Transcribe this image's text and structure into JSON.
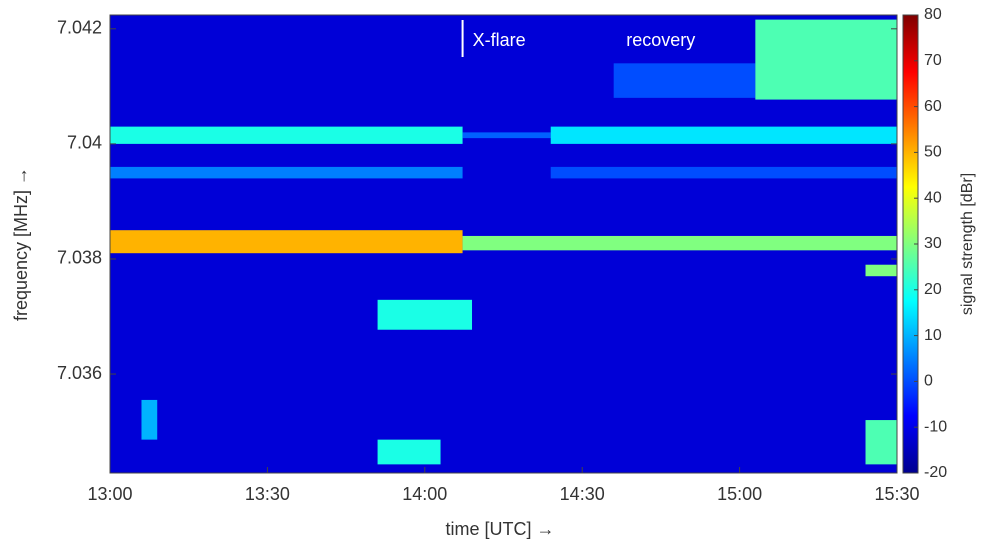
{
  "chart_data": {
    "type": "heatmap",
    "xlabel": "time  [UTC]  →",
    "ylabel": "frequency [MHz] →",
    "colorbar_label": "signal strength [dBr]",
    "xlim": [
      13,
      15.5
    ],
    "xticks": [
      {
        "value": 13,
        "label": "13:00"
      },
      {
        "value": 13.5,
        "label": "13:30"
      },
      {
        "value": 14,
        "label": "14:00"
      },
      {
        "value": 14.5,
        "label": "14:30"
      },
      {
        "value": 15,
        "label": "15:00"
      },
      {
        "value": 15.5,
        "label": "15:30"
      }
    ],
    "ylim": [
      7.03428,
      7.04224
    ],
    "yticks": [
      7.036,
      7.038,
      7.04,
      7.042
    ],
    "zlim": [
      -20,
      80
    ],
    "zticks": [
      -20,
      -10,
      0,
      10,
      20,
      30,
      40,
      50,
      60,
      70,
      80
    ],
    "colormap": [
      "#00008f",
      "#0000ff",
      "#0080ff",
      "#00ffff",
      "#80ff80",
      "#ffff00",
      "#ff8000",
      "#ff0000",
      "#800000"
    ],
    "background": -12,
    "cells": [
      {
        "x": [
          13,
          14.12
        ],
        "y": [
          7.0381,
          7.0385
        ],
        "value": 50
      },
      {
        "x": [
          14.12,
          15.5
        ],
        "y": [
          7.03815,
          7.0384
        ],
        "value": 30
      },
      {
        "x": [
          13,
          14.12
        ],
        "y": [
          7.04,
          7.0403
        ],
        "value": 20
      },
      {
        "x": [
          14.12,
          14.4
        ],
        "y": [
          7.0401,
          7.0402
        ],
        "value": 2
      },
      {
        "x": [
          14.4,
          15.5
        ],
        "y": [
          7.04,
          7.0403
        ],
        "value": 15
      },
      {
        "x": [
          13,
          14.12
        ],
        "y": [
          7.0394,
          7.0396
        ],
        "value": 5
      },
      {
        "x": [
          14.4,
          15.5
        ],
        "y": [
          7.0394,
          7.0396
        ],
        "value": 0
      },
      {
        "x": [
          13.85,
          14.15
        ],
        "y": [
          7.03677,
          7.03729
        ],
        "value": 20
      },
      {
        "x": [
          13.85,
          14.05
        ],
        "y": [
          7.03443,
          7.03486
        ],
        "value": 20
      },
      {
        "x": [
          13.1,
          13.15
        ],
        "y": [
          7.03486,
          7.03555
        ],
        "value": 10
      },
      {
        "x": [
          14.6,
          15.05
        ],
        "y": [
          7.0408,
          7.0414
        ],
        "value": 0
      },
      {
        "x": [
          15.05,
          15.5
        ],
        "y": [
          7.04077,
          7.04216
        ],
        "value": 25
      },
      {
        "x": [
          15.4,
          15.5
        ],
        "y": [
          7.0377,
          7.0379
        ],
        "value": 30
      },
      {
        "x": [
          15.4,
          15.5
        ],
        "y": [
          7.03443,
          7.0352
        ],
        "value": 25
      }
    ],
    "annotations": [
      {
        "text": "X-flare",
        "x": 14.12,
        "line": true
      },
      {
        "text": "recovery",
        "x": 14.64,
        "line": false
      }
    ]
  }
}
